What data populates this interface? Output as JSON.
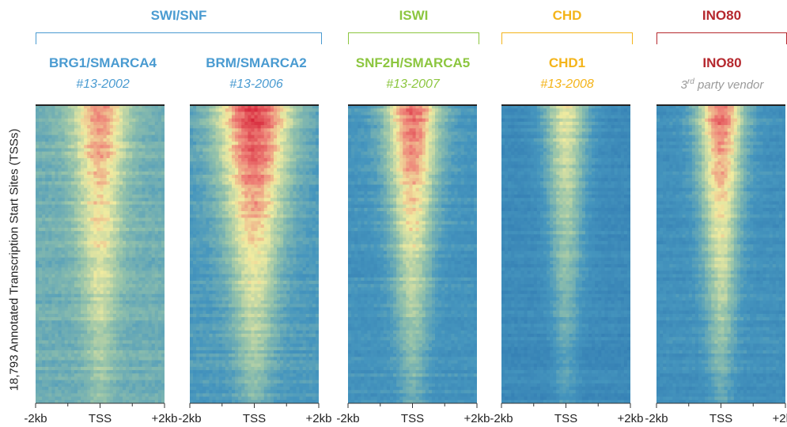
{
  "chart_data": {
    "type": "heatmap",
    "ylabel": "18,793 Annotated Transcription Start Sites (TSSs)",
    "x_tick_labels": [
      "-2kb",
      "TSS",
      "+2kb"
    ],
    "groups": [
      {
        "family": "SWI/SNF",
        "color": "#4a9bd1",
        "panels": [
          0,
          1
        ]
      },
      {
        "family": "ISWI",
        "color": "#8cc63f",
        "panels": [
          2
        ]
      },
      {
        "family": "CHD",
        "color": "#f4b41a",
        "panels": [
          3
        ]
      },
      {
        "family": "INO80",
        "color": "#b5282e",
        "panels": [
          4
        ]
      }
    ],
    "panels": [
      {
        "protein": "BRG1/SMARCA4",
        "catalog": "#13-2002",
        "color": "#4a9bd1",
        "peak_intensity": 0.72,
        "cone_width": 0.55,
        "background": 0.42
      },
      {
        "protein": "BRM/SMARCA2",
        "catalog": "#13-2006",
        "color": "#4a9bd1",
        "peak_intensity": 0.95,
        "cone_width": 0.85,
        "background": 0.32
      },
      {
        "protein": "SNF2H/SMARCA5",
        "catalog": "#13-2007",
        "color": "#8cc63f",
        "peak_intensity": 0.85,
        "cone_width": 0.55,
        "background": 0.28
      },
      {
        "protein": "CHD1",
        "catalog": "#13-2008",
        "color": "#f4b41a",
        "peak_intensity": 0.6,
        "cone_width": 0.4,
        "background": 0.22
      },
      {
        "protein": "INO80",
        "catalog_prefix": "3",
        "catalog_sup": "rd",
        "catalog_suffix": " party vendor",
        "color": "#b5282e",
        "peak_intensity": 0.85,
        "cone_width": 0.45,
        "background": 0.26
      }
    ]
  }
}
